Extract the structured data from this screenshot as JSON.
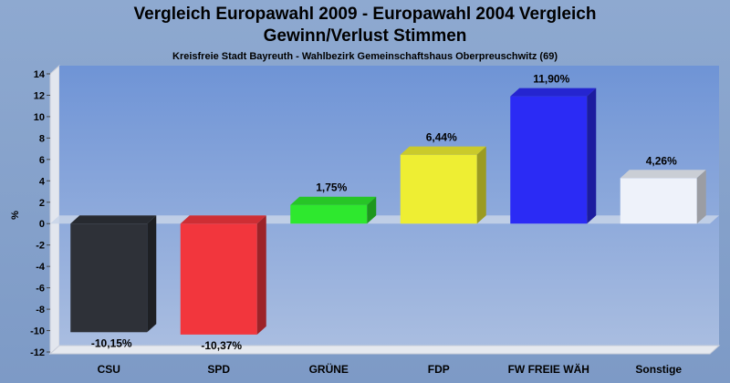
{
  "chart_data": {
    "type": "bar",
    "title_line1": "Vergleich Europawahl 2009 - Europawahl 2004 Vergleich",
    "title_line2": "Gewinn/Verlust Stimmen",
    "subtitle": "Kreisfreie Stadt Bayreuth - Wahlbezirk Gemeinschaftshaus Oberpreuschwitz (69)",
    "ylabel": "%",
    "xlabel": "",
    "ylim": [
      -12,
      14
    ],
    "yticks": [
      14,
      12,
      10,
      8,
      6,
      4,
      2,
      0,
      -2,
      -4,
      -6,
      -8,
      -10,
      -12
    ],
    "categories": [
      "CSU",
      "SPD",
      "GRÜNE",
      "FDP",
      "FW FREIE WÄH",
      "Sonstige"
    ],
    "values": [
      -10.15,
      -10.37,
      1.75,
      6.44,
      11.9,
      4.26
    ],
    "value_labels": [
      "-10,15%",
      "-10,37%",
      "1,75%",
      "6,44%",
      "11,90%",
      "4,26%"
    ],
    "colors": [
      "#2e3138",
      "#f2363d",
      "#2ee82e",
      "#eeee33",
      "#2b2bf5",
      "#eef2fa"
    ],
    "grid": false,
    "legend": "none"
  }
}
